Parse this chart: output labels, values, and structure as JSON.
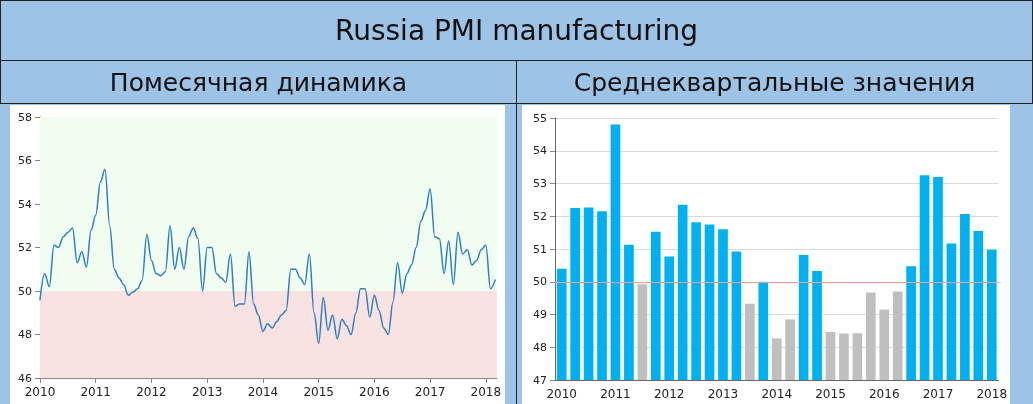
{
  "chart_data": [
    {
      "type": "line",
      "title": "Russia PMI manufacturing",
      "subtitle": "Помесячная динамика",
      "x": [
        2010,
        2010.083,
        2010.167,
        2010.25,
        2010.333,
        2010.417,
        2010.5,
        2010.583,
        2010.667,
        2010.75,
        2010.833,
        2010.917,
        2011,
        2011.083,
        2011.167,
        2011.25,
        2011.333,
        2011.417,
        2011.5,
        2011.583,
        2011.667,
        2011.75,
        2011.833,
        2011.917,
        2012,
        2012.083,
        2012.167,
        2012.25,
        2012.333,
        2012.417,
        2012.5,
        2012.583,
        2012.667,
        2012.75,
        2012.833,
        2012.917,
        2013,
        2013.083,
        2013.167,
        2013.25,
        2013.333,
        2013.417,
        2013.5,
        2013.583,
        2013.667,
        2013.75,
        2013.833,
        2013.917,
        2014,
        2014.083,
        2014.167,
        2014.25,
        2014.333,
        2014.417,
        2014.5,
        2014.583,
        2014.667,
        2014.75,
        2014.833,
        2014.917,
        2015,
        2015.083,
        2015.167,
        2015.25,
        2015.333,
        2015.417,
        2015.5,
        2015.583,
        2015.667,
        2015.75,
        2015.833,
        2015.917,
        2016,
        2016.083,
        2016.167,
        2016.25,
        2016.333,
        2016.417,
        2016.5,
        2016.583,
        2016.667,
        2016.75,
        2016.833,
        2016.917,
        2017,
        2017.083,
        2017.167,
        2017.25,
        2017.333,
        2017.417,
        2017.5,
        2017.583,
        2017.667,
        2017.75,
        2017.833,
        2017.917,
        2018,
        2018.083,
        2018.167
      ],
      "series": [
        {
          "color": "#2e7fbf",
          "values": [
            49.6,
            50.8,
            50.2,
            52.1,
            52.0,
            52.5,
            52.7,
            52.9,
            51.3,
            51.8,
            51.1,
            52.8,
            53.5,
            55.0,
            55.6,
            53.0,
            51.0,
            50.6,
            50.3,
            49.8,
            49.95,
            50.1,
            50.5,
            52.6,
            51.4,
            50.8,
            50.7,
            50.9,
            53.0,
            51.0,
            52.0,
            51.0,
            52.5,
            52.9,
            52.4,
            50.0,
            52.0,
            52.0,
            50.8,
            50.6,
            50.4,
            51.7,
            49.3,
            49.4,
            49.4,
            51.8,
            49.4,
            48.9,
            48.15,
            48.5,
            48.3,
            48.6,
            48.9,
            49.1,
            51.0,
            51.0,
            50.6,
            50.3,
            51.7,
            49.0,
            47.6,
            49.7,
            48.2,
            48.9,
            47.8,
            48.7,
            48.4,
            48.0,
            49.0,
            50.1,
            50.1,
            48.8,
            49.8,
            49.1,
            48.3,
            48.0,
            49.5,
            51.3,
            49.9,
            50.8,
            51.2,
            52.0,
            53.2,
            53.7,
            54.7,
            52.5,
            52.4,
            50.8,
            52.3,
            50.3,
            52.7,
            51.7,
            51.9,
            51.2,
            51.4,
            51.9,
            52.1,
            50.1,
            50.5
          ]
        }
      ],
      "xlim": [
        2010,
        2018.2
      ],
      "xticks": [
        2010,
        2011,
        2012,
        2013,
        2014,
        2015,
        2016,
        2017,
        2018
      ],
      "ylim": [
        46,
        58
      ],
      "yticks": [
        46,
        48,
        50,
        52,
        54,
        56,
        58
      ],
      "bands": [
        {
          "axis": "y",
          "from": 50,
          "to": 58,
          "color": "#f0fdf0"
        },
        {
          "axis": "y",
          "from": 46,
          "to": 50,
          "color": "#f9e2e2"
        }
      ],
      "grid": true,
      "line_style": "solid",
      "marker": "none"
    },
    {
      "type": "bar",
      "subtitle": "Среднеквартальные значения",
      "categories": [
        "2010",
        null,
        null,
        null,
        "2011",
        null,
        null,
        null,
        "2012",
        null,
        null,
        null,
        "2013",
        null,
        null,
        null,
        "2014",
        null,
        null,
        null,
        "2015",
        null,
        null,
        null,
        "2016",
        null,
        null,
        null,
        "2017",
        null,
        null,
        null,
        "2018"
      ],
      "values": [
        50.4,
        52.25,
        52.27,
        52.15,
        54.8,
        51.13,
        49.92,
        51.53,
        50.77,
        52.35,
        51.82,
        51.75,
        51.6,
        50.92,
        49.33,
        50.0,
        48.27,
        48.85,
        50.82,
        50.33,
        48.47,
        48.42,
        48.43,
        49.67,
        49.15,
        49.7,
        50.47,
        53.25,
        53.2,
        51.17,
        52.07,
        51.55,
        50.98
      ],
      "colors": [
        "#00b0f0",
        "#00b0f0",
        "#00b0f0",
        "#00b0f0",
        "#00b0f0",
        "#00b0f0",
        "#bfbfbf",
        "#00b0f0",
        "#00b0f0",
        "#00b0f0",
        "#00b0f0",
        "#00b0f0",
        "#00b0f0",
        "#00b0f0",
        "#bfbfbf",
        "#00b0f0",
        "#bfbfbf",
        "#bfbfbf",
        "#00b0f0",
        "#00b0f0",
        "#bfbfbf",
        "#bfbfbf",
        "#bfbfbf",
        "#bfbfbf",
        "#bfbfbf",
        "#bfbfbf",
        "#00b0f0",
        "#00b0f0",
        "#00b0f0",
        "#00b0f0",
        "#00b0f0",
        "#00b0f0",
        "#00b0f0"
      ],
      "ylim": [
        47,
        55
      ],
      "yticks": [
        47,
        48,
        49,
        50,
        51,
        52,
        53,
        54,
        55
      ],
      "ref_lines": [
        {
          "axis": "y",
          "value": 50,
          "color": "#f4a0a0"
        }
      ],
      "grid": "y"
    }
  ]
}
